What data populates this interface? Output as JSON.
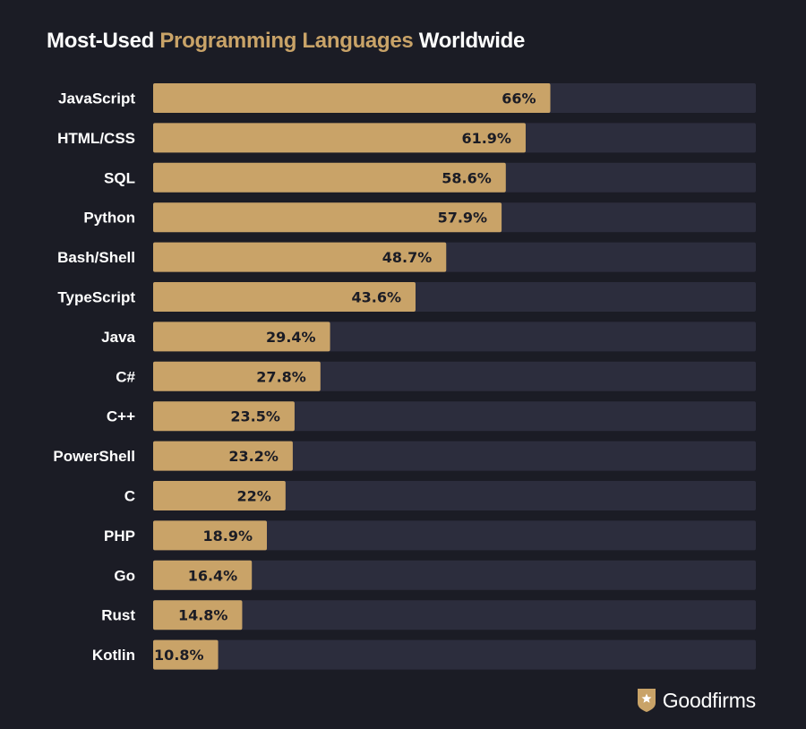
{
  "title": {
    "part1": "Most-Used ",
    "accent": "Programming Languages",
    "part2": " Worldwide"
  },
  "colors": {
    "background": "#1b1c25",
    "track": "#2c2d3d",
    "bar": "#c9a368",
    "accent_text": "#c9a368",
    "label": "#ffffff",
    "value_text": "#1b1c25"
  },
  "chart_data": {
    "type": "bar",
    "orientation": "horizontal",
    "categories": [
      "JavaScript",
      "HTML/CSS",
      "SQL",
      "Python",
      "Bash/Shell",
      "TypeScript",
      "Java",
      "C#",
      "C++",
      "PowerShell",
      "C",
      "PHP",
      "Go",
      "Rust",
      "Kotlin"
    ],
    "values": [
      66,
      61.9,
      58.6,
      57.9,
      48.7,
      43.6,
      29.4,
      27.8,
      23.5,
      23.2,
      22,
      18.9,
      16.4,
      14.8,
      10.8
    ],
    "value_labels": [
      "66%",
      "61.9%",
      "58.6%",
      "57.9%",
      "48.7%",
      "43.6%",
      "29.4%",
      "27.8%",
      "23.5%",
      "23.2%",
      "22%",
      "18.9%",
      "16.4%",
      "14.8%",
      "10.8%"
    ],
    "xlim": [
      0,
      100
    ],
    "grid": false,
    "legend": "none"
  },
  "brand": {
    "name": "Goodfirms",
    "logo_icon": "shield-star-icon"
  }
}
